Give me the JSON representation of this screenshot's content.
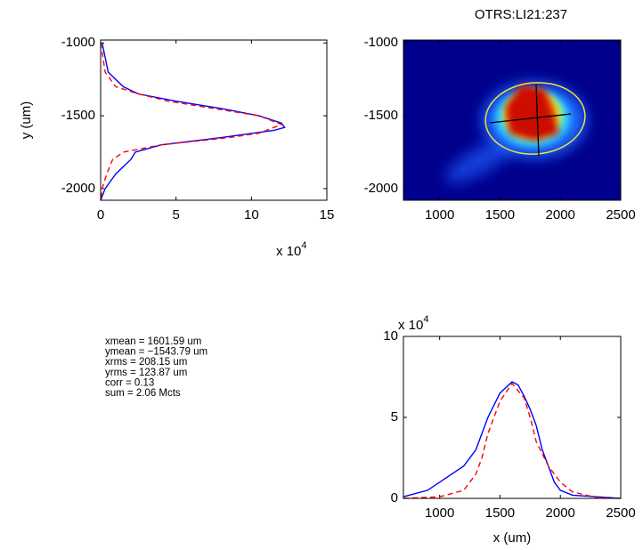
{
  "chart_data": [
    {
      "type": "line",
      "ylabel": "y  (um)",
      "multiplier": {
        "base": "x 10",
        "power": "4"
      },
      "xlim": [
        0,
        15
      ],
      "xticks": [
        0,
        5,
        10,
        15
      ],
      "ylim": [
        -2080,
        -980
      ],
      "yticks": [
        -2000,
        -1500,
        -1000
      ],
      "series": [
        {
          "color": "#0000ff",
          "dashed": false,
          "x": [
            0.1,
            0.3,
            0.5,
            1.5,
            2.5,
            5,
            8,
            10.5,
            12,
            12.2,
            11.5,
            8,
            4,
            2.3,
            2,
            1.5,
            1,
            0.3,
            0
          ],
          "y": [
            -1000,
            -1100,
            -1200,
            -1300,
            -1350,
            -1400,
            -1450,
            -1500,
            -1550,
            -1580,
            -1600,
            -1650,
            -1700,
            -1750,
            -1800,
            -1850,
            -1900,
            -2000,
            -2080
          ]
        },
        {
          "color": "#ff0000",
          "dashed": true,
          "x": [
            0,
            0.3,
            1,
            2.5,
            4.5,
            7.5,
            10.5,
            12,
            10.5,
            8.5,
            4,
            1.5,
            0.8,
            0.4,
            0.1,
            0
          ],
          "y": [
            -1000,
            -1200,
            -1300,
            -1350,
            -1400,
            -1450,
            -1500,
            -1560,
            -1620,
            -1650,
            -1700,
            -1750,
            -1800,
            -1900,
            -2000,
            -2080
          ]
        }
      ]
    },
    {
      "type": "image",
      "title": "OTRS:LI21:237",
      "xlim": [
        700,
        2500
      ],
      "xticks": [
        1000,
        1500,
        2000,
        2500
      ],
      "ylim": [
        -2080,
        -980
      ],
      "yticks": [
        -2000,
        -1500,
        -1000
      ]
    },
    {
      "type": "line",
      "xlabel": "x  (um)",
      "multiplier": {
        "base": "x 10",
        "power": "4"
      },
      "xlim": [
        700,
        2500
      ],
      "xticks": [
        1000,
        1500,
        2000,
        2500
      ],
      "ylim": [
        0,
        10
      ],
      "yticks": [
        0,
        5,
        10
      ],
      "series": [
        {
          "color": "#0000ff",
          "dashed": false,
          "x": [
            700,
            900,
            1000,
            1100,
            1200,
            1300,
            1400,
            1500,
            1600,
            1650,
            1700,
            1750,
            1800,
            1850,
            1900,
            1950,
            2000,
            2100,
            2300,
            2500
          ],
          "y": [
            0.1,
            0.5,
            1,
            1.5,
            2,
            3,
            5,
            6.5,
            7.2,
            7,
            6.3,
            5.5,
            4.5,
            3,
            2,
            1,
            0.5,
            0.2,
            0.1,
            0
          ]
        },
        {
          "color": "#ff0000",
          "dashed": true,
          "x": [
            700,
            1000,
            1200,
            1300,
            1350,
            1400,
            1500,
            1600,
            1700,
            1750,
            1800,
            1900,
            2000,
            2100,
            2300,
            2500
          ],
          "y": [
            0,
            0.1,
            0.5,
            1.5,
            2.5,
            4,
            6,
            7.1,
            6.2,
            5,
            3.5,
            2,
            1,
            0.4,
            0.05,
            0
          ]
        }
      ]
    }
  ],
  "stats": {
    "lines": [
      "xmean = 1601.59 um",
      "ymean = −1543.79 um",
      "xrms = 208.15 um",
      "yrms = 123.87 um",
      "corr =  0.13",
      "sum =  2.06 Mcts"
    ]
  }
}
